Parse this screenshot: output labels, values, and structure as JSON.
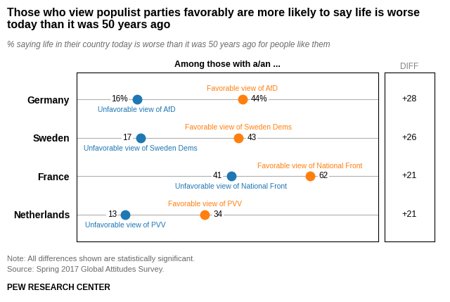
{
  "chart_data": {
    "type": "dot",
    "orientation": "horizontal",
    "title": "Those who view populist parties favorably are more likely to say life is worse today than it was 50 years ago",
    "subtitle": "% saying life in their country today is worse than it was 50 years ago for people like them",
    "header": "Among those with a/an ...",
    "categories": [
      "Germany",
      "Sweden",
      "France",
      "Netherlands"
    ],
    "series": [
      {
        "values": [
          16,
          17,
          41,
          13
        ],
        "value_labels": [
          "16%",
          "17",
          "41",
          "13"
        ],
        "annotations": [
          "Unfavorable view of AfD",
          "Unfavorable view of Sweden Dems",
          "Unfavorable view of National Front",
          "Unfavorable view of PVV"
        ]
      },
      {
        "values": [
          44,
          43,
          62,
          34
        ],
        "value_labels": [
          "44%",
          "43",
          "62",
          "34"
        ],
        "annotations": [
          "Favorable view of AfD",
          "Favorable view of Sweden Dems",
          "Favorable view of National Front",
          "Favorable view of PVV"
        ]
      }
    ],
    "xlim": [
      0,
      80
    ],
    "grid": true,
    "data_labels": true,
    "tick_labels": "y",
    "diff": {
      "title": "DIFF",
      "values": [
        28,
        26,
        21,
        21
      ],
      "value_labels": [
        "+28",
        "+26",
        "+21",
        "+21"
      ]
    },
    "notes": [
      "Note: All differences shown are statistically significant.",
      "Source: Spring 2017 Global Attitudes Survey."
    ],
    "source": "PEW RESEARCH CENTER"
  }
}
